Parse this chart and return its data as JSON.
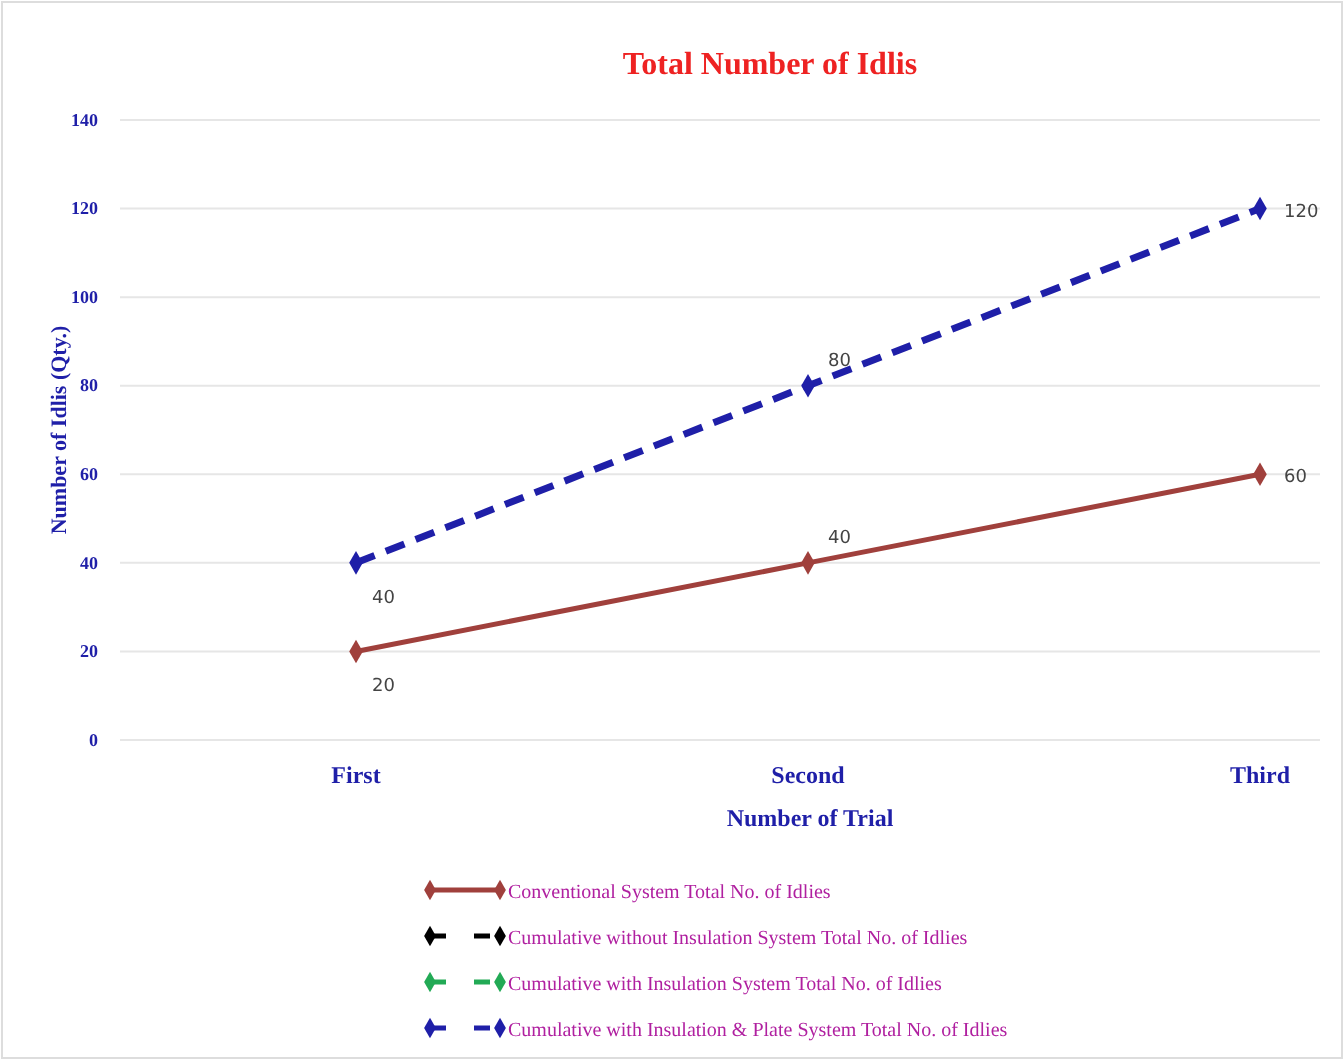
{
  "chart_data": {
    "type": "line",
    "title": "Total Number of Idlis",
    "xlabel": "Number of Trial",
    "ylabel": "Number of Idlis (Qty.)",
    "categories": [
      "First",
      "Second",
      "Third"
    ],
    "series": [
      {
        "name": "Conventional System Total No. of Idlies",
        "color": "#a0403c",
        "values": [
          20,
          40,
          60
        ],
        "line_style": "solid"
      },
      {
        "name": "Cumulative without Insulation System Total No. of Idlies",
        "color": "#000000",
        "values": [
          null,
          null,
          null
        ],
        "line_style": "dashed"
      },
      {
        "name": "Cumulative with Insulation System Total No. of Idlies",
        "color": "#22aa55",
        "values": [
          null,
          null,
          null
        ],
        "line_style": "dashed"
      },
      {
        "name": "Cumulative with Insulation & Plate System Total No. of Idlies",
        "color": "#1f1fa8",
        "values": [
          40,
          80,
          120
        ],
        "line_style": "dashed"
      }
    ],
    "ylim": [
      0,
      140
    ],
    "yticks": [
      0,
      20,
      40,
      60,
      80,
      100,
      120,
      140
    ],
    "grid": "y",
    "legend": "bottom",
    "marker": "diamond",
    "data_labels": true
  }
}
